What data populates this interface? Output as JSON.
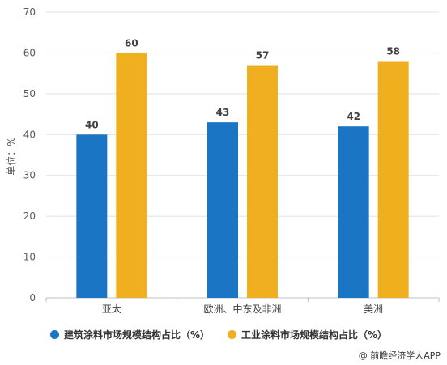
{
  "chart_data": {
    "type": "bar",
    "ylabel": "单位：%",
    "ylim": [
      0,
      70
    ],
    "yticks": [
      0,
      10,
      20,
      30,
      40,
      50,
      60,
      70
    ],
    "grid": true,
    "legend_position": "bottom",
    "categories": [
      "亚太",
      "欧洲、中东及非洲",
      "美洲"
    ],
    "series": [
      {
        "name": "建筑涂料市场规模结构占比（%）",
        "color": "#1a76c5",
        "values": [
          40,
          43,
          42
        ]
      },
      {
        "name": "工业涂料市场规模结构占比（%）",
        "color": "#f0af1f",
        "values": [
          60,
          57,
          58
        ]
      }
    ]
  },
  "credit": "@ 前瞻经济学人APP"
}
